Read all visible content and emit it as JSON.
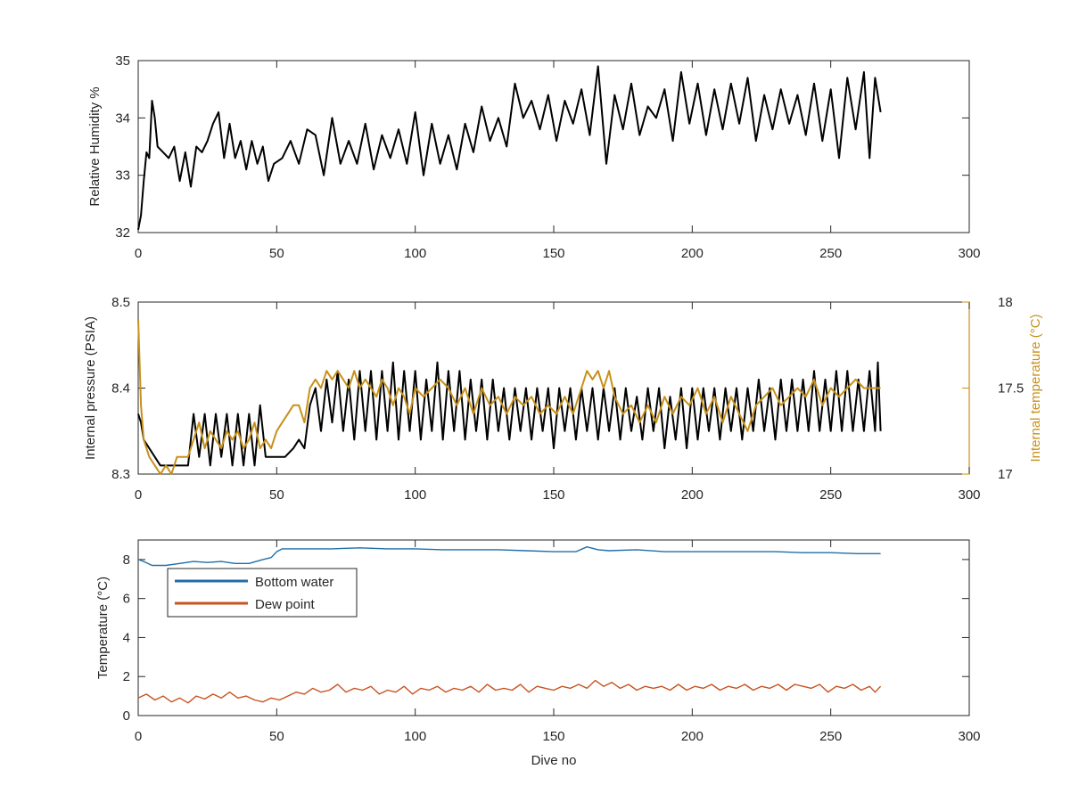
{
  "colors": {
    "black_series": "#000000",
    "internal_temp": "#c8901a",
    "bottom_water": "#1f6fa8",
    "dew_point": "#c8531f",
    "axis": "#262626"
  },
  "chart_data": [
    {
      "type": "line",
      "ylabel": "Relative Humidity %",
      "xlim": [
        0,
        300
      ],
      "ylim": [
        32,
        35
      ],
      "xticks": [
        "0",
        "50",
        "100",
        "150",
        "200",
        "250",
        "300"
      ],
      "yticks": [
        "32",
        "33",
        "34",
        "35"
      ],
      "series": [
        {
          "color": "#000000",
          "x": [
            0,
            1,
            2,
            3,
            4,
            5,
            6,
            7,
            9,
            11,
            13,
            15,
            17,
            19,
            21,
            23,
            25,
            27,
            29,
            31,
            33,
            35,
            37,
            39,
            41,
            43,
            45,
            47,
            49,
            52,
            55,
            58,
            61,
            64,
            67,
            70,
            73,
            76,
            79,
            82,
            85,
            88,
            91,
            94,
            97,
            100,
            103,
            106,
            109,
            112,
            115,
            118,
            121,
            124,
            127,
            130,
            133,
            136,
            139,
            142,
            145,
            148,
            151,
            154,
            157,
            160,
            163,
            166,
            169,
            172,
            175,
            178,
            181,
            184,
            187,
            190,
            193,
            196,
            199,
            202,
            205,
            208,
            211,
            214,
            217,
            220,
            223,
            226,
            229,
            232,
            235,
            238,
            241,
            244,
            247,
            250,
            253,
            256,
            259,
            262,
            264,
            266,
            268
          ],
          "y": [
            32.05,
            32.3,
            32.9,
            33.4,
            33.3,
            34.3,
            34.0,
            33.5,
            33.4,
            33.3,
            33.5,
            32.9,
            33.4,
            32.8,
            33.5,
            33.4,
            33.6,
            33.9,
            34.1,
            33.3,
            33.9,
            33.3,
            33.6,
            33.1,
            33.6,
            33.2,
            33.5,
            32.9,
            33.2,
            33.3,
            33.6,
            33.2,
            33.8,
            33.7,
            33.0,
            34.0,
            33.2,
            33.6,
            33.2,
            33.9,
            33.1,
            33.7,
            33.3,
            33.8,
            33.2,
            34.1,
            33.0,
            33.9,
            33.2,
            33.7,
            33.1,
            33.9,
            33.4,
            34.2,
            33.6,
            34.0,
            33.5,
            34.6,
            34.0,
            34.3,
            33.8,
            34.4,
            33.6,
            34.3,
            33.9,
            34.5,
            33.7,
            34.9,
            33.2,
            34.4,
            33.8,
            34.6,
            33.7,
            34.2,
            34.0,
            34.5,
            33.6,
            34.8,
            33.9,
            34.6,
            33.7,
            34.5,
            33.8,
            34.6,
            33.9,
            34.7,
            33.6,
            34.4,
            33.8,
            34.5,
            33.9,
            34.4,
            33.7,
            34.6,
            33.6,
            34.5,
            33.3,
            34.7,
            33.8,
            34.8,
            33.3,
            34.7,
            34.1
          ]
        }
      ]
    },
    {
      "type": "line",
      "ylabel": "Internal pressure (PSIA)",
      "ylabel_right": "Internal temperature (°C)",
      "xlim": [
        0,
        300
      ],
      "ylim": [
        8.3,
        8.5
      ],
      "ylim_right": [
        17,
        18
      ],
      "xticks": [
        "0",
        "50",
        "100",
        "150",
        "200",
        "250",
        "300"
      ],
      "yticks": [
        "8.3",
        "8.4",
        "8.5"
      ],
      "yticks_right": [
        "17",
        "17.5",
        "18"
      ],
      "series": [
        {
          "axis": "left",
          "color": "#000000",
          "x": [
            0,
            1,
            2,
            4,
            6,
            8,
            10,
            12,
            15,
            18,
            20,
            22,
            24,
            26,
            28,
            30,
            32,
            34,
            36,
            38,
            40,
            42,
            44,
            46,
            48,
            50,
            53,
            56,
            58,
            60,
            62,
            64,
            66,
            68,
            70,
            72,
            74,
            76,
            78,
            80,
            82,
            84,
            86,
            88,
            90,
            92,
            94,
            96,
            98,
            100,
            102,
            104,
            106,
            108,
            110,
            112,
            114,
            116,
            118,
            120,
            122,
            124,
            126,
            128,
            130,
            132,
            134,
            136,
            138,
            140,
            142,
            144,
            146,
            148,
            150,
            152,
            154,
            156,
            158,
            160,
            162,
            164,
            166,
            168,
            170,
            172,
            174,
            176,
            178,
            180,
            182,
            184,
            186,
            188,
            190,
            192,
            194,
            196,
            198,
            200,
            202,
            204,
            206,
            208,
            210,
            212,
            214,
            216,
            218,
            220,
            222,
            224,
            226,
            228,
            230,
            232,
            234,
            236,
            238,
            240,
            242,
            244,
            246,
            248,
            250,
            252,
            254,
            256,
            258,
            260,
            262,
            264,
            266,
            267,
            268
          ],
          "y": [
            8.37,
            8.36,
            8.34,
            8.33,
            8.32,
            8.31,
            8.31,
            8.31,
            8.31,
            8.31,
            8.37,
            8.32,
            8.37,
            8.31,
            8.37,
            8.32,
            8.37,
            8.31,
            8.37,
            8.31,
            8.37,
            8.31,
            8.38,
            8.32,
            8.32,
            8.32,
            8.32,
            8.33,
            8.34,
            8.33,
            8.38,
            8.4,
            8.35,
            8.41,
            8.36,
            8.42,
            8.35,
            8.41,
            8.34,
            8.42,
            8.35,
            8.42,
            8.34,
            8.42,
            8.35,
            8.43,
            8.34,
            8.42,
            8.35,
            8.42,
            8.34,
            8.41,
            8.35,
            8.43,
            8.34,
            8.42,
            8.35,
            8.42,
            8.34,
            8.41,
            8.35,
            8.41,
            8.34,
            8.41,
            8.35,
            8.4,
            8.34,
            8.4,
            8.35,
            8.4,
            8.34,
            8.4,
            8.35,
            8.4,
            8.33,
            8.4,
            8.35,
            8.4,
            8.34,
            8.4,
            8.35,
            8.4,
            8.34,
            8.4,
            8.35,
            8.4,
            8.34,
            8.4,
            8.35,
            8.39,
            8.34,
            8.4,
            8.35,
            8.4,
            8.33,
            8.39,
            8.34,
            8.4,
            8.33,
            8.4,
            8.34,
            8.4,
            8.35,
            8.4,
            8.34,
            8.4,
            8.35,
            8.4,
            8.34,
            8.4,
            8.35,
            8.41,
            8.35,
            8.4,
            8.34,
            8.41,
            8.35,
            8.41,
            8.35,
            8.41,
            8.35,
            8.42,
            8.35,
            8.41,
            8.35,
            8.42,
            8.35,
            8.42,
            8.35,
            8.41,
            8.35,
            8.42,
            8.35,
            8.43,
            8.35
          ]
        },
        {
          "axis": "right",
          "color": "#c8901a",
          "x": [
            0,
            1,
            2,
            4,
            6,
            8,
            10,
            12,
            14,
            16,
            18,
            20,
            22,
            24,
            26,
            28,
            30,
            32,
            34,
            36,
            38,
            40,
            42,
            44,
            46,
            48,
            50,
            52,
            54,
            56,
            58,
            60,
            62,
            64,
            66,
            68,
            70,
            72,
            74,
            76,
            78,
            80,
            82,
            84,
            86,
            88,
            90,
            92,
            94,
            96,
            98,
            100,
            103,
            106,
            109,
            112,
            115,
            118,
            121,
            124,
            127,
            130,
            133,
            136,
            139,
            142,
            145,
            148,
            151,
            154,
            157,
            160,
            162,
            164,
            166,
            168,
            170,
            172,
            175,
            178,
            181,
            184,
            187,
            190,
            193,
            196,
            199,
            202,
            205,
            208,
            211,
            214,
            217,
            220,
            223,
            226,
            229,
            232,
            235,
            238,
            241,
            244,
            247,
            250,
            253,
            256,
            259,
            262,
            265,
            268
          ],
          "y": [
            17.9,
            17.4,
            17.2,
            17.1,
            17.05,
            17.0,
            17.05,
            17.0,
            17.1,
            17.1,
            17.1,
            17.2,
            17.3,
            17.15,
            17.25,
            17.2,
            17.15,
            17.25,
            17.2,
            17.25,
            17.15,
            17.2,
            17.3,
            17.15,
            17.2,
            17.15,
            17.25,
            17.3,
            17.35,
            17.4,
            17.4,
            17.3,
            17.5,
            17.55,
            17.5,
            17.6,
            17.55,
            17.6,
            17.55,
            17.5,
            17.6,
            17.5,
            17.55,
            17.5,
            17.45,
            17.55,
            17.5,
            17.4,
            17.5,
            17.45,
            17.35,
            17.5,
            17.45,
            17.5,
            17.55,
            17.5,
            17.4,
            17.5,
            17.35,
            17.5,
            17.4,
            17.45,
            17.35,
            17.45,
            17.4,
            17.45,
            17.35,
            17.4,
            17.35,
            17.45,
            17.35,
            17.5,
            17.6,
            17.55,
            17.6,
            17.5,
            17.6,
            17.45,
            17.35,
            17.4,
            17.3,
            17.4,
            17.3,
            17.45,
            17.35,
            17.45,
            17.4,
            17.5,
            17.35,
            17.45,
            17.3,
            17.45,
            17.35,
            17.25,
            17.4,
            17.45,
            17.5,
            17.4,
            17.45,
            17.5,
            17.45,
            17.55,
            17.4,
            17.5,
            17.45,
            17.5,
            17.55,
            17.5,
            17.5,
            17.5
          ]
        }
      ]
    },
    {
      "type": "line",
      "xlabel": "Dive no",
      "ylabel": "Temperature (°C)",
      "xlim": [
        0,
        300
      ],
      "ylim": [
        0,
        9
      ],
      "xticks": [
        "0",
        "50",
        "100",
        "150",
        "200",
        "250",
        "300"
      ],
      "yticks": [
        "0",
        "2",
        "4",
        "6",
        "8"
      ],
      "legend": {
        "position": "top-left",
        "entries": [
          "Bottom water",
          "Dew point"
        ]
      },
      "series": [
        {
          "name": "Bottom water",
          "color": "#1f6fa8",
          "x": [
            0,
            2,
            5,
            10,
            15,
            20,
            25,
            30,
            35,
            40,
            45,
            48,
            50,
            52,
            55,
            60,
            70,
            80,
            90,
            100,
            110,
            120,
            130,
            140,
            150,
            158,
            162,
            166,
            170,
            180,
            190,
            200,
            210,
            220,
            230,
            240,
            250,
            260,
            268
          ],
          "y": [
            8.0,
            7.9,
            7.7,
            7.7,
            7.8,
            7.9,
            7.85,
            7.9,
            7.8,
            7.8,
            8.0,
            8.1,
            8.4,
            8.55,
            8.55,
            8.55,
            8.55,
            8.6,
            8.55,
            8.55,
            8.5,
            8.5,
            8.5,
            8.45,
            8.4,
            8.4,
            8.65,
            8.5,
            8.45,
            8.5,
            8.4,
            8.4,
            8.4,
            8.4,
            8.4,
            8.35,
            8.35,
            8.3,
            8.3
          ]
        },
        {
          "name": "Dew point",
          "color": "#c8531f",
          "x": [
            0,
            3,
            6,
            9,
            12,
            15,
            18,
            21,
            24,
            27,
            30,
            33,
            36,
            39,
            42,
            45,
            48,
            51,
            54,
            57,
            60,
            63,
            66,
            69,
            72,
            75,
            78,
            81,
            84,
            87,
            90,
            93,
            96,
            99,
            102,
            105,
            108,
            111,
            114,
            117,
            120,
            123,
            126,
            129,
            132,
            135,
            138,
            141,
            144,
            147,
            150,
            153,
            156,
            159,
            162,
            165,
            168,
            171,
            174,
            177,
            180,
            183,
            186,
            189,
            192,
            195,
            198,
            201,
            204,
            207,
            210,
            213,
            216,
            219,
            222,
            225,
            228,
            231,
            234,
            237,
            240,
            243,
            246,
            249,
            252,
            255,
            258,
            261,
            264,
            266,
            268
          ],
          "y": [
            0.9,
            1.1,
            0.8,
            1.0,
            0.7,
            0.9,
            0.65,
            1.0,
            0.85,
            1.1,
            0.9,
            1.2,
            0.9,
            1.0,
            0.8,
            0.7,
            0.9,
            0.8,
            1.0,
            1.2,
            1.1,
            1.4,
            1.2,
            1.3,
            1.6,
            1.2,
            1.4,
            1.3,
            1.5,
            1.1,
            1.3,
            1.2,
            1.5,
            1.1,
            1.4,
            1.3,
            1.5,
            1.2,
            1.4,
            1.3,
            1.5,
            1.2,
            1.6,
            1.3,
            1.4,
            1.3,
            1.6,
            1.2,
            1.5,
            1.4,
            1.3,
            1.5,
            1.4,
            1.6,
            1.4,
            1.8,
            1.5,
            1.7,
            1.4,
            1.6,
            1.3,
            1.5,
            1.4,
            1.5,
            1.3,
            1.6,
            1.3,
            1.5,
            1.4,
            1.6,
            1.3,
            1.5,
            1.4,
            1.6,
            1.3,
            1.5,
            1.4,
            1.6,
            1.3,
            1.6,
            1.5,
            1.4,
            1.6,
            1.2,
            1.5,
            1.4,
            1.6,
            1.3,
            1.5,
            1.2,
            1.5
          ]
        }
      ]
    }
  ]
}
